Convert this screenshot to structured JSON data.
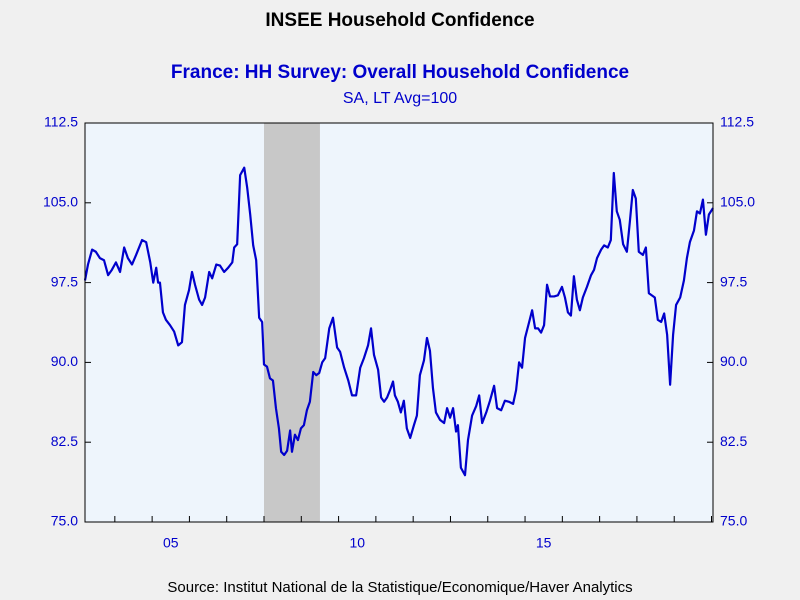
{
  "chart_data": {
    "type": "line",
    "title": "INSEE Household Confidence",
    "subtitle": "SA, LT Avg=100",
    "source": "Source:  Institut National de la Statistique/Economique/Haver Analytics",
    "xlim": [
      2003.2,
      2020.04
    ],
    "xticks": [
      {
        "value": 2005,
        "label": "05"
      },
      {
        "value": 2010,
        "label": "10"
      },
      {
        "value": 2015,
        "label": "15"
      }
    ],
    "xminorticks": [
      2004,
      2005,
      2006,
      2007,
      2008,
      2009,
      2010,
      2011,
      2012,
      2013,
      2014,
      2015,
      2016,
      2017,
      2018,
      2019,
      2020
    ],
    "ylim": [
      75,
      112.5
    ],
    "yticks": [
      {
        "value": 75,
        "label": "75.0"
      },
      {
        "value": 82.5,
        "label": "82.5"
      },
      {
        "value": 90,
        "label": "90.0"
      },
      {
        "value": 97.5,
        "label": "97.5"
      },
      {
        "value": 105,
        "label": "105.0"
      },
      112.5
    ],
    "shading": [
      [
        2008.0,
        2009.5
      ]
    ],
    "x": [
      2003.2,
      2003.28,
      2003.39,
      2003.49,
      2003.6,
      2003.71,
      2003.82,
      2003.92,
      2004.03,
      2004.14,
      2004.25,
      2004.35,
      2004.46,
      2004.57,
      2004.73,
      2004.84,
      2004.95,
      2005.03,
      2005.11,
      2005.16,
      2005.21,
      2005.29,
      2005.37,
      2005.48,
      2005.59,
      2005.7,
      2005.8,
      2005.88,
      2005.99,
      2006.07,
      2006.15,
      2006.26,
      2006.34,
      2006.42,
      2006.53,
      2006.61,
      2006.72,
      2006.82,
      2006.93,
      2007.04,
      2007.15,
      2007.2,
      2007.28,
      2007.36,
      2007.47,
      2007.55,
      2007.63,
      2007.71,
      2007.79,
      2007.87,
      2007.95,
      2008.0,
      2008.08,
      2008.16,
      2008.24,
      2008.32,
      2008.4,
      2008.46,
      2008.54,
      2008.62,
      2008.7,
      2008.75,
      2008.83,
      2008.91,
      2008.99,
      2009.07,
      2009.15,
      2009.23,
      2009.32,
      2009.4,
      2009.48,
      2009.56,
      2009.64,
      2009.75,
      2009.85,
      2009.96,
      2010.04,
      2010.15,
      2010.26,
      2010.36,
      2010.47,
      2010.58,
      2010.68,
      2010.79,
      2010.87,
      2010.95,
      2011.06,
      2011.14,
      2011.22,
      2011.3,
      2011.38,
      2011.46,
      2011.51,
      2011.59,
      2011.67,
      2011.75,
      2011.83,
      2011.92,
      2012.02,
      2012.1,
      2012.18,
      2012.29,
      2012.37,
      2012.45,
      2012.53,
      2012.61,
      2012.72,
      2012.83,
      2012.91,
      2012.99,
      2013.07,
      2013.15,
      2013.2,
      2013.28,
      2013.39,
      2013.47,
      2013.58,
      2013.69,
      2013.77,
      2013.85,
      2013.96,
      2014.06,
      2014.17,
      2014.25,
      2014.36,
      2014.46,
      2014.57,
      2014.68,
      2014.76,
      2014.84,
      2014.92,
      2015.0,
      2015.11,
      2015.19,
      2015.27,
      2015.35,
      2015.43,
      2015.51,
      2015.59,
      2015.67,
      2015.78,
      2015.88,
      2015.99,
      2016.07,
      2016.15,
      2016.23,
      2016.31,
      2016.39,
      2016.47,
      2016.55,
      2016.66,
      2016.77,
      2016.85,
      2016.93,
      2017.04,
      2017.12,
      2017.22,
      2017.3,
      2017.38,
      2017.46,
      2017.54,
      2017.63,
      2017.73,
      2017.81,
      2017.89,
      2017.97,
      2018.05,
      2018.16,
      2018.24,
      2018.32,
      2018.4,
      2018.48,
      2018.56,
      2018.65,
      2018.73,
      2018.81,
      2018.89,
      2018.97,
      2019.05,
      2019.16,
      2019.26,
      2019.34,
      2019.42,
      2019.53,
      2019.61,
      2019.69,
      2019.77,
      2019.85,
      2019.93,
      2020.04
    ],
    "series": [
      {
        "name": "France: HH Survey: Overall Household Confidence",
        "color": "#0000cc",
        "values": [
          97.7,
          99.2,
          100.6,
          100.4,
          99.8,
          99.6,
          98.2,
          98.7,
          99.4,
          98.5,
          100.8,
          99.8,
          99.2,
          100.1,
          101.5,
          101.3,
          99.4,
          97.5,
          98.9,
          97.5,
          97.5,
          94.7,
          94.0,
          93.5,
          92.9,
          91.6,
          91.9,
          95.4,
          96.8,
          98.5,
          97.3,
          95.9,
          95.4,
          96.1,
          98.5,
          97.9,
          99.2,
          99.1,
          98.5,
          98.9,
          99.4,
          100.8,
          101.1,
          107.6,
          108.3,
          106.4,
          103.9,
          101.0,
          99.6,
          94.2,
          93.8,
          89.8,
          89.6,
          88.5,
          88.3,
          85.7,
          83.8,
          81.6,
          81.3,
          81.7,
          83.6,
          81.6,
          83.2,
          82.7,
          83.8,
          84.1,
          85.5,
          86.3,
          89.1,
          88.8,
          89.0,
          90.0,
          90.4,
          93.2,
          94.2,
          91.4,
          91.0,
          89.5,
          88.3,
          86.9,
          86.9,
          89.5,
          90.4,
          91.6,
          93.2,
          90.7,
          89.3,
          86.7,
          86.3,
          86.7,
          87.4,
          88.2,
          86.9,
          86.3,
          85.3,
          86.4,
          83.8,
          82.9,
          84.1,
          85.0,
          88.8,
          90.2,
          92.3,
          91.1,
          87.6,
          85.3,
          84.6,
          84.3,
          85.7,
          84.8,
          85.7,
          83.5,
          84.1,
          80.1,
          79.4,
          82.7,
          85.0,
          85.9,
          86.9,
          84.3,
          85.3,
          86.4,
          87.8,
          85.7,
          85.5,
          86.4,
          86.3,
          86.1,
          87.4,
          90.0,
          89.5,
          92.3,
          93.8,
          94.9,
          93.2,
          93.2,
          92.8,
          93.5,
          97.3,
          96.2,
          96.2,
          96.3,
          97.1,
          96.1,
          94.7,
          94.4,
          98.1,
          95.9,
          94.9,
          96.1,
          97.1,
          98.2,
          98.7,
          99.8,
          100.6,
          101.0,
          100.8,
          101.5,
          107.8,
          104.2,
          103.4,
          101.1,
          100.4,
          103.2,
          106.2,
          105.4,
          100.4,
          100.1,
          100.8,
          96.5,
          96.3,
          96.1,
          94.0,
          93.8,
          94.6,
          92.6,
          87.9,
          92.6,
          95.4,
          96.1,
          97.7,
          99.8,
          101.3,
          102.4,
          104.2,
          104.0,
          105.3,
          102.0,
          103.9,
          104.5
        ]
      }
    ]
  }
}
